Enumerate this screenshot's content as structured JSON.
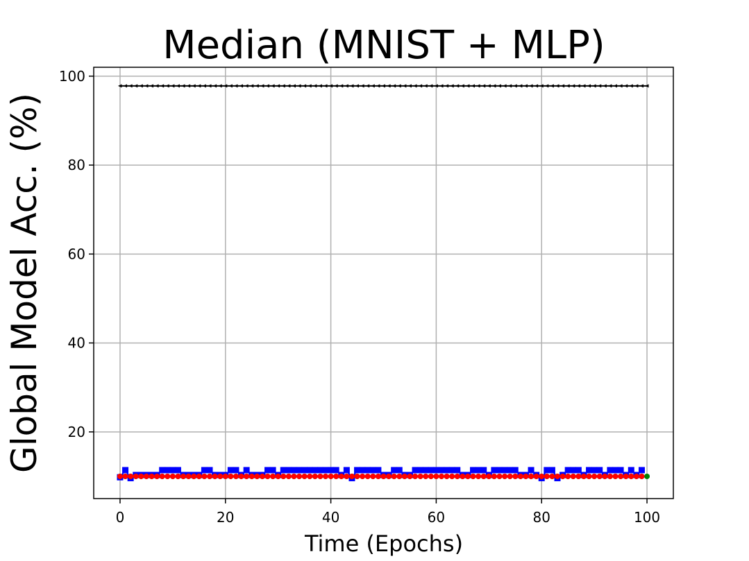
{
  "chart_data": {
    "type": "line",
    "title": "Median (MNIST + MLP)",
    "xlabel": "Time (Epochs)",
    "ylabel": "Global Model Acc. (%)",
    "xlim": [
      -5,
      105
    ],
    "ylim": [
      5,
      102
    ],
    "xticks": [
      0,
      20,
      40,
      60,
      80,
      100
    ],
    "yticks": [
      20,
      40,
      60,
      80,
      100
    ],
    "grid": true,
    "legend": "none",
    "series": [
      {
        "color": "#000000",
        "marker": "triangle-left",
        "x_start": 0,
        "x_end": 100,
        "values": [
          97.8,
          97.8,
          97.8,
          97.8,
          97.8,
          97.8,
          97.8,
          97.8,
          97.8,
          97.8,
          97.8,
          97.8,
          97.8,
          97.8,
          97.8,
          97.8,
          97.8,
          97.8,
          97.8,
          97.8,
          97.8,
          97.8,
          97.8,
          97.8,
          97.8,
          97.8,
          97.8,
          97.8,
          97.8,
          97.8,
          97.8,
          97.8,
          97.8,
          97.8,
          97.8,
          97.8,
          97.8,
          97.8,
          97.8,
          97.8,
          97.8,
          97.8,
          97.8,
          97.8,
          97.8,
          97.8,
          97.8,
          97.8,
          97.8,
          97.8,
          97.8,
          97.8,
          97.8,
          97.8,
          97.8,
          97.8,
          97.8,
          97.8,
          97.8,
          97.8,
          97.8,
          97.8,
          97.8,
          97.8,
          97.8,
          97.8,
          97.8,
          97.8,
          97.8,
          97.8,
          97.8,
          97.8,
          97.8,
          97.8,
          97.8,
          97.8,
          97.8,
          97.8,
          97.8,
          97.8,
          97.8,
          97.8,
          97.8,
          97.8,
          97.8,
          97.8,
          97.8,
          97.8,
          97.8,
          97.8,
          97.8,
          97.8,
          97.8,
          97.8,
          97.8,
          97.8,
          97.8,
          97.8,
          97.8,
          97.8,
          97.8
        ]
      },
      {
        "color": "#0000ff",
        "marker": "square",
        "x_start": 0,
        "x_end": 99,
        "values": [
          9.8,
          11.4,
          9.6,
          10.3,
          10.3,
          10.3,
          10.3,
          10.3,
          11.4,
          11.4,
          11.4,
          11.4,
          10.3,
          10.3,
          10.3,
          10.3,
          11.4,
          11.4,
          10.3,
          10.3,
          10.3,
          11.4,
          11.4,
          10.3,
          11.4,
          10.3,
          10.3,
          10.3,
          11.4,
          11.4,
          10.3,
          11.4,
          11.4,
          11.4,
          11.4,
          11.4,
          11.4,
          11.4,
          11.4,
          11.4,
          11.4,
          11.4,
          10.3,
          11.4,
          9.6,
          11.4,
          11.4,
          11.4,
          11.4,
          11.4,
          10.3,
          10.3,
          11.4,
          11.4,
          10.3,
          10.3,
          11.4,
          11.4,
          11.4,
          11.4,
          11.4,
          11.4,
          11.4,
          11.4,
          11.4,
          10.3,
          10.3,
          11.4,
          11.4,
          11.4,
          10.3,
          11.4,
          11.4,
          11.4,
          11.4,
          11.4,
          10.3,
          10.3,
          11.4,
          10.3,
          9.6,
          11.4,
          11.4,
          9.6,
          10.3,
          11.4,
          11.4,
          11.4,
          10.3,
          11.4,
          11.4,
          11.4,
          10.3,
          11.4,
          11.4,
          11.4,
          10.3,
          11.4,
          10.3,
          11.4
        ]
      },
      {
        "color": "#008000",
        "marker": "circle",
        "x_start": 0,
        "x_end": 100,
        "values": [
          10.0,
          10.0,
          10.0,
          10.0,
          10.0,
          10.0,
          10.0,
          10.0,
          10.0,
          10.0,
          10.0,
          10.0,
          10.0,
          10.0,
          10.0,
          10.0,
          10.0,
          10.0,
          10.0,
          10.0,
          10.0,
          10.0,
          10.0,
          10.0,
          10.0,
          10.0,
          10.0,
          10.0,
          10.0,
          10.0,
          10.0,
          10.0,
          10.0,
          10.0,
          10.0,
          10.0,
          10.0,
          10.0,
          10.0,
          10.0,
          10.0,
          10.0,
          10.0,
          10.0,
          10.0,
          10.0,
          10.0,
          10.0,
          10.0,
          10.0,
          10.0,
          10.0,
          10.0,
          10.0,
          10.0,
          10.0,
          10.0,
          10.0,
          10.0,
          10.0,
          10.0,
          10.0,
          10.0,
          10.0,
          10.0,
          10.0,
          10.0,
          10.0,
          10.0,
          10.0,
          10.0,
          10.0,
          10.0,
          10.0,
          10.0,
          10.0,
          10.0,
          10.0,
          10.0,
          10.0,
          10.0,
          10.0,
          10.0,
          10.0,
          10.0,
          10.0,
          10.0,
          10.0,
          10.0,
          10.0,
          10.0,
          10.0,
          10.0,
          10.0,
          10.0,
          10.0,
          10.0,
          10.0,
          10.0,
          10.0,
          10.0
        ]
      },
      {
        "color": "#ff0000",
        "marker": "circle",
        "x_start": 0,
        "x_end": 99,
        "values": [
          10.0,
          10.0,
          10.0,
          10.0,
          10.0,
          10.0,
          10.0,
          10.0,
          10.0,
          10.0,
          10.0,
          10.0,
          10.0,
          10.0,
          10.0,
          10.0,
          10.0,
          10.0,
          10.0,
          10.0,
          10.0,
          10.0,
          10.0,
          10.0,
          10.0,
          10.0,
          10.0,
          10.0,
          10.0,
          10.0,
          10.0,
          10.0,
          10.0,
          10.0,
          10.0,
          10.0,
          10.0,
          10.0,
          10.0,
          10.0,
          10.0,
          10.0,
          10.0,
          10.0,
          10.0,
          10.0,
          10.0,
          10.0,
          10.0,
          10.0,
          10.0,
          10.0,
          10.0,
          10.0,
          10.0,
          10.0,
          10.0,
          10.0,
          10.0,
          10.0,
          10.0,
          10.0,
          10.0,
          10.0,
          10.0,
          10.0,
          10.0,
          10.0,
          10.0,
          10.0,
          10.0,
          10.0,
          10.0,
          10.0,
          10.0,
          10.0,
          10.0,
          10.0,
          10.0,
          10.0,
          10.0,
          10.0,
          10.0,
          10.0,
          10.0,
          10.0,
          10.0,
          10.0,
          10.0,
          10.0,
          10.0,
          10.0,
          10.0,
          10.0,
          10.0,
          10.0,
          10.0,
          10.0,
          10.0,
          10.0
        ]
      }
    ]
  }
}
